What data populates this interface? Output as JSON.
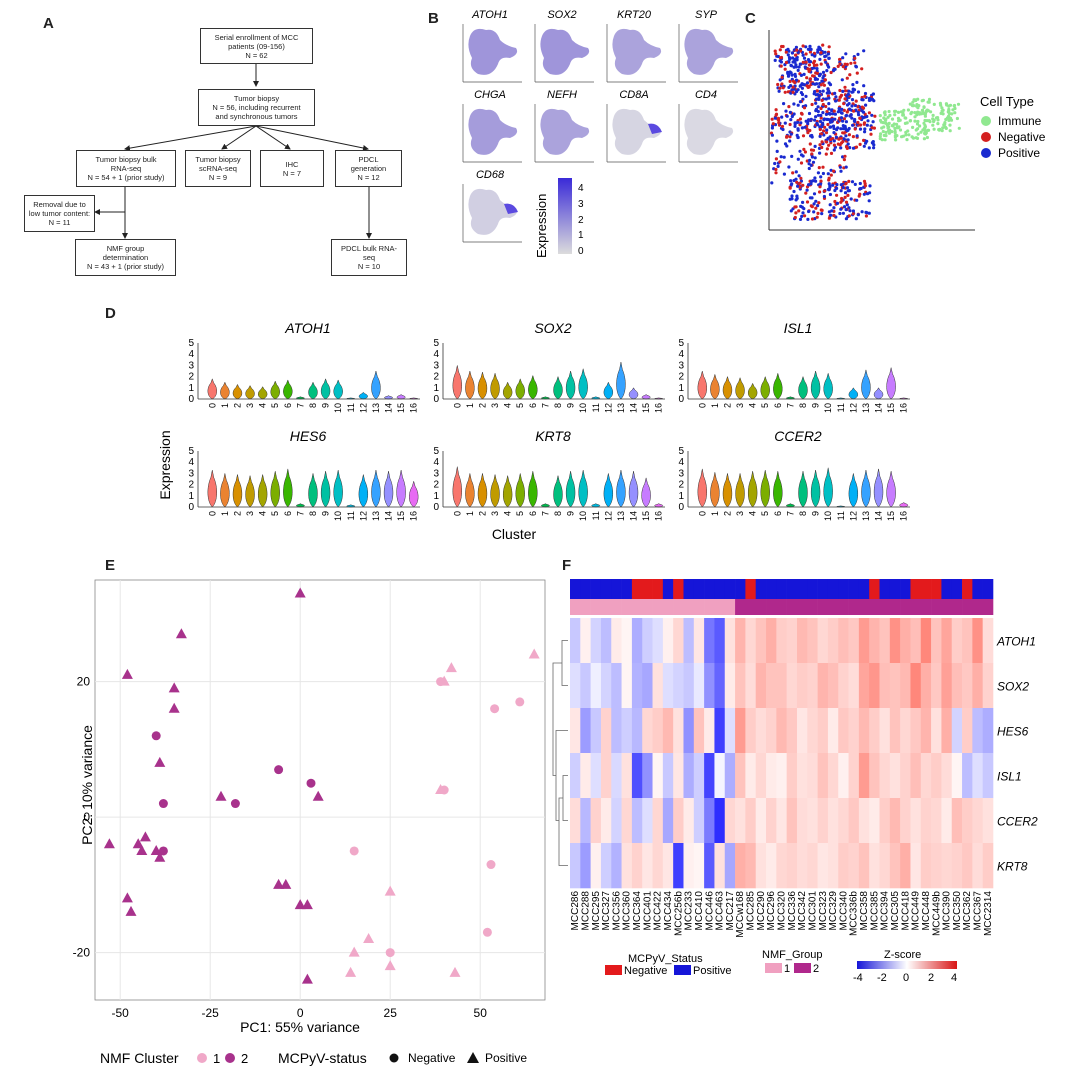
{
  "panels": {
    "a": "A",
    "b": "B",
    "c": "C",
    "d": "D",
    "e": "E",
    "f": "F"
  },
  "flow": {
    "enroll": [
      "Serial enrollment of MCC",
      "patients (09-156)",
      "N = 62"
    ],
    "biopsy": [
      "Tumor biopsy",
      "N = 56, including recurrent",
      "and synchronous tumors"
    ],
    "bulk": [
      "Tumor biopsy bulk",
      "RNA-seq",
      "N = 54 + 1 (prior study)"
    ],
    "scrna": [
      "Tumor biopsy",
      "scRNA-seq",
      "N = 9"
    ],
    "ihc": [
      "IHC",
      "N = 7"
    ],
    "pdcl": [
      "PDCL",
      "generation",
      "N = 12"
    ],
    "removal": [
      "Removal due to",
      "low tumor content:",
      "N = 11"
    ],
    "nmf": [
      "NMF group",
      "determination",
      "N = 43 + 1 (prior study)"
    ],
    "pdclbulk": [
      "PDCL bulk RNA-",
      "seq",
      "N = 10"
    ]
  },
  "panel_b": {
    "genes": [
      "ATOH1",
      "SOX2",
      "KRT20",
      "SYP",
      "CHGA",
      "NEFH",
      "CD8A",
      "CD4",
      "CD68"
    ],
    "legend_title": "Expression",
    "legend_ticks": [
      "4",
      "3",
      "2",
      "1",
      "0"
    ]
  },
  "panel_c": {
    "legend_title": "Cell Type",
    "items": [
      {
        "label": "Immune",
        "color": "#90e890"
      },
      {
        "label": "Negative",
        "color": "#d42020"
      },
      {
        "label": "Positive",
        "color": "#1a2ad0"
      }
    ]
  },
  "panel_d": {
    "ylabel": "Expression",
    "xlabel": "Cluster",
    "yticks": [
      "0",
      "1",
      "2",
      "3",
      "4",
      "5"
    ],
    "clusters": [
      "0",
      "1",
      "2",
      "3",
      "4",
      "5",
      "6",
      "7",
      "8",
      "9",
      "10",
      "11",
      "12",
      "13",
      "14",
      "15",
      "16"
    ],
    "genes": [
      "ATOH1",
      "SOX2",
      "ISL1",
      "HES6",
      "KRT8",
      "CCER2"
    ],
    "cluster_colors": [
      "#f8766d",
      "#ea8331",
      "#d89000",
      "#c09b00",
      "#a3a500",
      "#7cae00",
      "#39b600",
      "#00bb4e",
      "#00bf7d",
      "#00c1a3",
      "#00bfc4",
      "#00bae0",
      "#00b0f6",
      "#35a2ff",
      "#9590ff",
      "#c77cff",
      "#e76bf3"
    ],
    "violin_heights": {
      "ATOH1": [
        1.8,
        1.5,
        1.3,
        1.2,
        1.1,
        1.6,
        1.7,
        0.2,
        1.5,
        1.8,
        1.7,
        0.1,
        0.6,
        2.5,
        0.3,
        0.4,
        0.1
      ],
      "SOX2": [
        3.0,
        2.5,
        2.4,
        2.3,
        1.5,
        1.8,
        2.1,
        0.2,
        2.0,
        2.5,
        2.7,
        0.2,
        1.5,
        3.3,
        1.0,
        0.4,
        0.1
      ],
      "ISL1": [
        2.5,
        2.2,
        2.0,
        1.9,
        1.4,
        2.0,
        2.3,
        0.2,
        2.0,
        2.5,
        2.3,
        0.1,
        1.0,
        2.6,
        1.0,
        2.8,
        0.1
      ],
      "HES6": [
        3.3,
        3.0,
        2.9,
        2.8,
        2.9,
        3.2,
        3.4,
        0.3,
        3.0,
        3.2,
        3.3,
        0.2,
        2.9,
        3.3,
        3.2,
        3.3,
        2.3
      ],
      "KRT8": [
        3.6,
        3.0,
        3.0,
        2.9,
        2.8,
        3.0,
        3.2,
        0.3,
        2.8,
        3.2,
        3.3,
        0.3,
        3.0,
        3.3,
        3.2,
        2.6,
        0.3
      ],
      "CCER2": [
        3.4,
        3.1,
        3.0,
        3.0,
        3.2,
        3.3,
        3.2,
        0.3,
        3.2,
        3.3,
        3.5,
        0.1,
        3.0,
        3.3,
        3.4,
        3.2,
        0.4
      ]
    }
  },
  "panel_e": {
    "xlabel": "PC1: 55% variance",
    "ylabel": "PC2: 10% variance",
    "xticks": [
      "-50",
      "-25",
      "0",
      "25",
      "50"
    ],
    "yticks": [
      "20",
      "0",
      "-20"
    ],
    "legend_nmf_title": "NMF Cluster",
    "legend_nmf": [
      "1",
      "2"
    ],
    "legend_mcpyv_title": "MCPyV-status",
    "legend_mcpyv": [
      "Negative",
      "Positive"
    ],
    "colors": {
      "c1": "#f0a8c8",
      "c2": "#a8328c"
    }
  },
  "chart_data": {
    "type": "scatter",
    "title": "",
    "xlabel": "PC1: 55% variance",
    "ylabel": "PC2: 10% variance",
    "xlim": [
      -57,
      68
    ],
    "ylim": [
      -27,
      35
    ],
    "points": [
      {
        "x": 0,
        "y": 33,
        "c": 2,
        "s": "P"
      },
      {
        "x": -33,
        "y": 27,
        "c": 2,
        "s": "P"
      },
      {
        "x": -48,
        "y": 21,
        "c": 2,
        "s": "P"
      },
      {
        "x": -35,
        "y": 19,
        "c": 2,
        "s": "P"
      },
      {
        "x": -35,
        "y": 16,
        "c": 2,
        "s": "P"
      },
      {
        "x": -40,
        "y": 12,
        "c": 2,
        "s": "N"
      },
      {
        "x": -39,
        "y": 8,
        "c": 2,
        "s": "P"
      },
      {
        "x": -6,
        "y": 7,
        "c": 2,
        "s": "N"
      },
      {
        "x": -22,
        "y": 3,
        "c": 2,
        "s": "P"
      },
      {
        "x": -18,
        "y": 2,
        "c": 2,
        "s": "N"
      },
      {
        "x": -38,
        "y": 2,
        "c": 2,
        "s": "N"
      },
      {
        "x": 3,
        "y": 5,
        "c": 2,
        "s": "N"
      },
      {
        "x": 5,
        "y": 3,
        "c": 2,
        "s": "P"
      },
      {
        "x": -43,
        "y": -3,
        "c": 2,
        "s": "P"
      },
      {
        "x": -45,
        "y": -4,
        "c": 2,
        "s": "P"
      },
      {
        "x": -53,
        "y": -4,
        "c": 2,
        "s": "P"
      },
      {
        "x": -38,
        "y": -5,
        "c": 2,
        "s": "N"
      },
      {
        "x": -40,
        "y": -5,
        "c": 2,
        "s": "P"
      },
      {
        "x": -39,
        "y": -6,
        "c": 2,
        "s": "P"
      },
      {
        "x": -44,
        "y": -5,
        "c": 2,
        "s": "P"
      },
      {
        "x": -48,
        "y": -12,
        "c": 2,
        "s": "P"
      },
      {
        "x": -47,
        "y": -14,
        "c": 2,
        "s": "P"
      },
      {
        "x": -6,
        "y": -10,
        "c": 2,
        "s": "P"
      },
      {
        "x": -4,
        "y": -10,
        "c": 2,
        "s": "P"
      },
      {
        "x": 0,
        "y": -13,
        "c": 2,
        "s": "P"
      },
      {
        "x": 2,
        "y": -13,
        "c": 2,
        "s": "P"
      },
      {
        "x": 2,
        "y": -24,
        "c": 2,
        "s": "P"
      },
      {
        "x": 65,
        "y": 24,
        "c": 1,
        "s": "P"
      },
      {
        "x": 42,
        "y": 22,
        "c": 1,
        "s": "P"
      },
      {
        "x": 39,
        "y": 20,
        "c": 1,
        "s": "N"
      },
      {
        "x": 40,
        "y": 20,
        "c": 1,
        "s": "P"
      },
      {
        "x": 61,
        "y": 17,
        "c": 1,
        "s": "N"
      },
      {
        "x": 54,
        "y": 16,
        "c": 1,
        "s": "N"
      },
      {
        "x": 40,
        "y": 4,
        "c": 1,
        "s": "N"
      },
      {
        "x": 39,
        "y": 4,
        "c": 1,
        "s": "P"
      },
      {
        "x": 15,
        "y": -5,
        "c": 1,
        "s": "N"
      },
      {
        "x": 53,
        "y": -7,
        "c": 1,
        "s": "N"
      },
      {
        "x": 25,
        "y": -11,
        "c": 1,
        "s": "P"
      },
      {
        "x": 52,
        "y": -17,
        "c": 1,
        "s": "N"
      },
      {
        "x": 19,
        "y": -18,
        "c": 1,
        "s": "P"
      },
      {
        "x": 25,
        "y": -20,
        "c": 1,
        "s": "N"
      },
      {
        "x": 15,
        "y": -20,
        "c": 1,
        "s": "P"
      },
      {
        "x": 25,
        "y": -22,
        "c": 1,
        "s": "P"
      },
      {
        "x": 14,
        "y": -23,
        "c": 1,
        "s": "P"
      },
      {
        "x": 43,
        "y": -23,
        "c": 1,
        "s": "P"
      }
    ]
  },
  "panel_f": {
    "genes": [
      "ATOH1",
      "SOX2",
      "HES6",
      "ISL1",
      "CCER2",
      "KRT8"
    ],
    "samples": [
      "MCC286",
      "MCC288",
      "MCC295",
      "MCC327",
      "MCC356",
      "MCC360",
      "MCC364",
      "MCC401",
      "MCC422",
      "MCC434",
      "MCC256b",
      "MCC233",
      "MCC410",
      "MCC446",
      "MCC463",
      "MCC217",
      "MCCw168",
      "MCC285",
      "MCC290",
      "MCC296",
      "MCC320",
      "MCC336",
      "MCC342",
      "MCC301",
      "MCC323",
      "MCC329",
      "MCC340",
      "MCC336b",
      "MCC358",
      "MCC385",
      "MCC394",
      "MCC305",
      "MCC418",
      "MCC449",
      "MCC448",
      "MCC449b",
      "MCC390",
      "MCC350",
      "MCC362",
      "MCC367",
      "MCC2314"
    ],
    "mcpyv": [
      "P",
      "P",
      "P",
      "P",
      "P",
      "P",
      "N",
      "N",
      "N",
      "P",
      "N",
      "P",
      "P",
      "P",
      "P",
      "P",
      "P",
      "N",
      "P",
      "P",
      "P",
      "P",
      "P",
      "P",
      "P",
      "P",
      "P",
      "P",
      "P",
      "N",
      "P",
      "P",
      "P",
      "N",
      "N",
      "N",
      "P",
      "P",
      "N",
      "P",
      "P"
    ],
    "nmf": [
      1,
      1,
      1,
      1,
      1,
      1,
      1,
      1,
      1,
      1,
      1,
      1,
      1,
      1,
      1,
      1,
      2,
      2,
      2,
      2,
      2,
      2,
      2,
      2,
      2,
      2,
      2,
      2,
      2,
      2,
      2,
      2,
      2,
      2,
      2,
      2,
      2,
      2,
      2,
      2,
      2
    ],
    "legend_mcpyv_title": "MCPyV_Status",
    "legend_mcpyv": [
      "Negative",
      "Positive"
    ],
    "legend_nmf_title": "NMF_Group",
    "legend_nmf": [
      "1",
      "2"
    ],
    "legend_z_title": "Z-score",
    "legend_z_ticks": [
      "-4",
      "-2",
      "0",
      "2",
      "4"
    ],
    "z": [
      [
        -1.0,
        0.3,
        -0.8,
        -1.2,
        0.4,
        0.2,
        -1.5,
        -0.9,
        -0.6,
        0.3,
        0.8,
        -1.2,
        0.5,
        -2.5,
        -3.0,
        0.6,
        1.5,
        0.8,
        1.2,
        1.6,
        1.0,
        0.9,
        1.4,
        1.2,
        0.8,
        1.0,
        1.3,
        1.1,
        2.0,
        1.5,
        1.2,
        2.2,
        1.6,
        1.3,
        2.4,
        1.2,
        1.8,
        1.0,
        1.2,
        2.2,
        0.7
      ],
      [
        -0.6,
        -1.0,
        -0.3,
        -0.8,
        -1.2,
        0.2,
        -1.4,
        -1.6,
        0.6,
        -0.6,
        -0.8,
        -1.0,
        -0.4,
        -2.0,
        -2.8,
        0.4,
        1.2,
        0.7,
        1.5,
        1.2,
        1.2,
        0.8,
        1.0,
        0.9,
        1.5,
        1.3,
        0.9,
        0.7,
        1.8,
        2.1,
        1.3,
        1.2,
        1.4,
        2.4,
        1.6,
        1.1,
        1.9,
        1.3,
        1.1,
        1.6,
        0.9
      ],
      [
        0.5,
        -1.8,
        -1.0,
        0.9,
        -1.2,
        -0.9,
        -1.3,
        0.8,
        1.0,
        1.4,
        0.6,
        -2.0,
        1.2,
        0.4,
        -3.5,
        -0.6,
        2.0,
        1.0,
        0.7,
        0.9,
        1.4,
        1.1,
        0.5,
        0.8,
        1.0,
        0.4,
        1.1,
        0.9,
        1.4,
        1.0,
        0.6,
        1.2,
        0.8,
        1.1,
        1.5,
        0.6,
        1.6,
        -0.8,
        1.0,
        -1.2,
        -1.5
      ],
      [
        -0.9,
        0.4,
        -0.6,
        0.9,
        -0.7,
        0.6,
        -3.2,
        -2.0,
        0.2,
        -1.0,
        0.5,
        -1.5,
        -0.9,
        -3.4,
        -0.2,
        -1.5,
        1.2,
        0.4,
        0.8,
        0.4,
        0.3,
        1.0,
        0.6,
        0.7,
        1.2,
        0.8,
        0.3,
        0.9,
        2.0,
        1.2,
        0.8,
        0.6,
        0.9,
        1.3,
        0.8,
        1.0,
        0.7,
        0.2,
        -1.2,
        -0.6,
        -1.0
      ],
      [
        0.7,
        -1.3,
        0.9,
        0.4,
        -0.8,
        0.8,
        -1.2,
        -0.6,
        0.8,
        -1.6,
        1.0,
        0.4,
        -0.9,
        -2.4,
        -3.8,
        0.8,
        0.6,
        1.0,
        0.4,
        0.9,
        0.5,
        1.2,
        0.7,
        0.6,
        0.9,
        0.6,
        0.8,
        1.1,
        0.6,
        0.4,
        1.0,
        1.4,
        0.9,
        0.6,
        0.9,
        0.8,
        0.4,
        1.3,
        1.0,
        0.8,
        0.6
      ],
      [
        -1.0,
        -1.8,
        0.3,
        -0.9,
        -1.4,
        0.6,
        0.9,
        0.5,
        0.8,
        0.5,
        -3.5,
        0.3,
        0.2,
        -3.0,
        0.6,
        -1.6,
        1.6,
        1.4,
        0.6,
        0.4,
        0.8,
        0.9,
        0.7,
        0.8,
        0.5,
        0.6,
        1.0,
        0.9,
        1.2,
        0.6,
        0.8,
        1.2,
        1.6,
        0.5,
        1.0,
        0.9,
        0.8,
        0.9,
        1.1,
        0.7,
        1.0
      ]
    ]
  }
}
